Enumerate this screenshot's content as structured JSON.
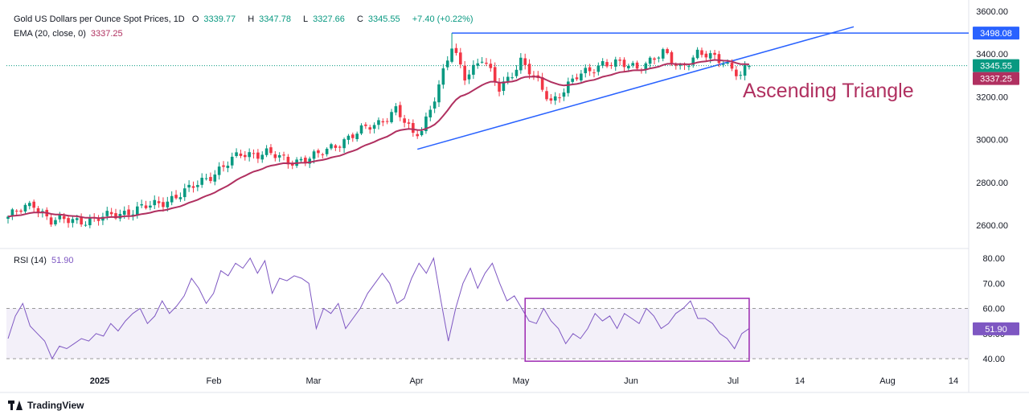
{
  "header": {
    "title": "Gold US Dollars per Ounce Spot Prices, 1D",
    "o_label": "O",
    "open": "3339.77",
    "h_label": "H",
    "high": "3347.78",
    "l_label": "L",
    "low": "3327.66",
    "c_label": "C",
    "close": "3345.55",
    "change": "+7.40 (+0.22%)",
    "ema_label": "EMA (20, close, 0)",
    "ema_value": "3337.25",
    "rsi_label": "RSI (14)",
    "rsi_value": "51.90"
  },
  "annotation": "Ascending Triangle",
  "badges": {
    "resistance": "3498.08",
    "close": "3345.55",
    "ema": "3337.25",
    "rsi": "51.90"
  },
  "branding": "TradingView",
  "colors": {
    "up": "#089981",
    "down": "#f23645",
    "ema": "#b03060",
    "trend": "#2962ff",
    "rsi": "#7e57c2",
    "annotation": "#b03060"
  },
  "chart_data": [
    {
      "type": "candlestick",
      "title": "Gold US Dollars per Ounce Spot Prices, 1D",
      "x_ticks": [
        "2025",
        "Feb",
        "Mar",
        "Apr",
        "May",
        "Jun",
        "Jul",
        "14",
        "Aug",
        "14"
      ],
      "y_ticks": [
        "2600.00",
        "2800.00",
        "3000.00",
        "3200.00",
        "3400.00",
        "3600.00"
      ],
      "ylim": [
        2540,
        3600
      ],
      "last": {
        "open": 3339.77,
        "high": 3347.78,
        "low": 3327.66,
        "close": 3345.55
      },
      "close_anchors": [
        [
          0,
          2640
        ],
        [
          6,
          2700
        ],
        [
          10,
          2620
        ],
        [
          20,
          2625
        ],
        [
          35,
          2700
        ],
        [
          42,
          2765
        ],
        [
          54,
          2930
        ],
        [
          60,
          2940
        ],
        [
          65,
          2895
        ],
        [
          72,
          2925
        ],
        [
          78,
          3000
        ],
        [
          86,
          3080
        ],
        [
          90,
          3140
        ],
        [
          94,
          3020
        ],
        [
          96,
          3050
        ],
        [
          100,
          3250
        ],
        [
          103,
          3430
        ],
        [
          106,
          3300
        ],
        [
          110,
          3380
        ],
        [
          114,
          3235
        ],
        [
          119,
          3370
        ],
        [
          126,
          3180
        ],
        [
          132,
          3290
        ],
        [
          138,
          3360
        ],
        [
          146,
          3340
        ],
        [
          152,
          3400
        ],
        [
          156,
          3340
        ],
        [
          160,
          3400
        ],
        [
          166,
          3370
        ],
        [
          170,
          3300
        ],
        [
          172,
          3345.55
        ]
      ],
      "ema_period": 20,
      "series": [
        {
          "name": "EMA (20, close, 0)",
          "last": 3337.25
        }
      ],
      "resistance": 3498.08,
      "support_line": [
        [
          95,
          2955
        ],
        [
          164,
          3345
        ]
      ],
      "annotation": "Ascending Triangle"
    },
    {
      "type": "line",
      "title": "RSI (14)",
      "y_ticks": [
        "40.00",
        "50.00",
        "60.00",
        "70.00",
        "80.00"
      ],
      "ylim": [
        38,
        82
      ],
      "band": [
        40,
        60
      ],
      "values": [
        48,
        57,
        62,
        53,
        50,
        47,
        40,
        45,
        44,
        46,
        48,
        47,
        50,
        49,
        54,
        51,
        55,
        58,
        60,
        54,
        57,
        63,
        58,
        61,
        65,
        72,
        68,
        62,
        66,
        75,
        73,
        78,
        76,
        80,
        74,
        79,
        66,
        72,
        71,
        73,
        72,
        70,
        52,
        60,
        58,
        62,
        52,
        56,
        60,
        66,
        70,
        74,
        70,
        62,
        64,
        72,
        78,
        74,
        80,
        63,
        47,
        60,
        70,
        76,
        68,
        74,
        78,
        70,
        63,
        65,
        60,
        55,
        54,
        60,
        55,
        52,
        46,
        50,
        48,
        52,
        58,
        55,
        57,
        52,
        58,
        56,
        54,
        60,
        57,
        52,
        54,
        58,
        60,
        63,
        56,
        56,
        54,
        50,
        48,
        44,
        50,
        52
      ],
      "highlight_box": {
        "x_start_index": 120,
        "x_end_index": 172,
        "y_range": [
          39,
          64
        ]
      },
      "series": [
        {
          "name": "RSI (14)",
          "last": 51.9
        }
      ]
    }
  ]
}
